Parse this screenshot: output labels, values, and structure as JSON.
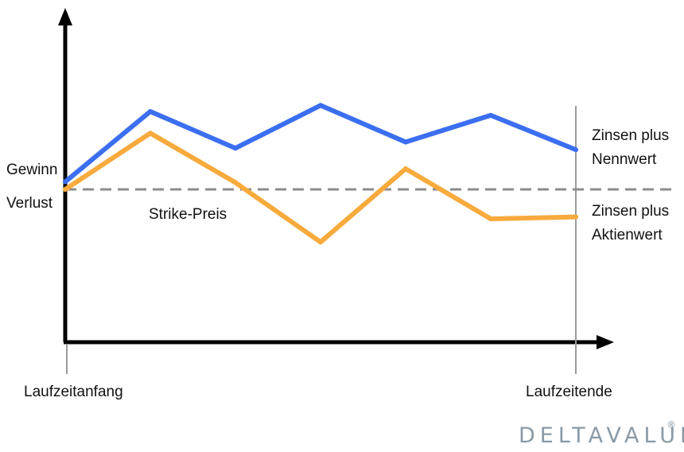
{
  "chart_data": {
    "type": "line",
    "x": [
      0,
      1,
      2,
      3,
      4,
      5,
      6
    ],
    "series": [
      {
        "name": "Zinsen plus Nennwert",
        "color": "#3b6ff0",
        "values": [
          0.2,
          2.04,
          1.08,
          2.2,
          1.24,
          1.94,
          1.04
        ]
      },
      {
        "name": "Zinsen plus Aktienwert",
        "color": "#f8aa3c",
        "values": [
          0.0,
          1.47,
          0.18,
          -1.38,
          0.54,
          -0.77,
          -0.72
        ]
      }
    ],
    "strike_level": 0,
    "ylim": [
      -3.0,
      3.5
    ],
    "xlim": [
      0,
      6.3
    ],
    "axis_color": "#000000",
    "strike_line_color": "#8c8c8c",
    "end_line_color": "#9a9a9a"
  },
  "labels": {
    "gewinn": "Gewinn",
    "verlust": "Verlust",
    "strike": "Strike-Preis",
    "series1_line1": "Zinsen plus",
    "series1_line2": "Nennwert",
    "series2_line1": "Zinsen plus",
    "series2_line2": "Aktienwert",
    "start": "Laufzeitanfang",
    "end": "Laufzeitende"
  },
  "brand": {
    "text": "DELTAVALUE",
    "mark": "®",
    "color": "#8a9aa6"
  }
}
